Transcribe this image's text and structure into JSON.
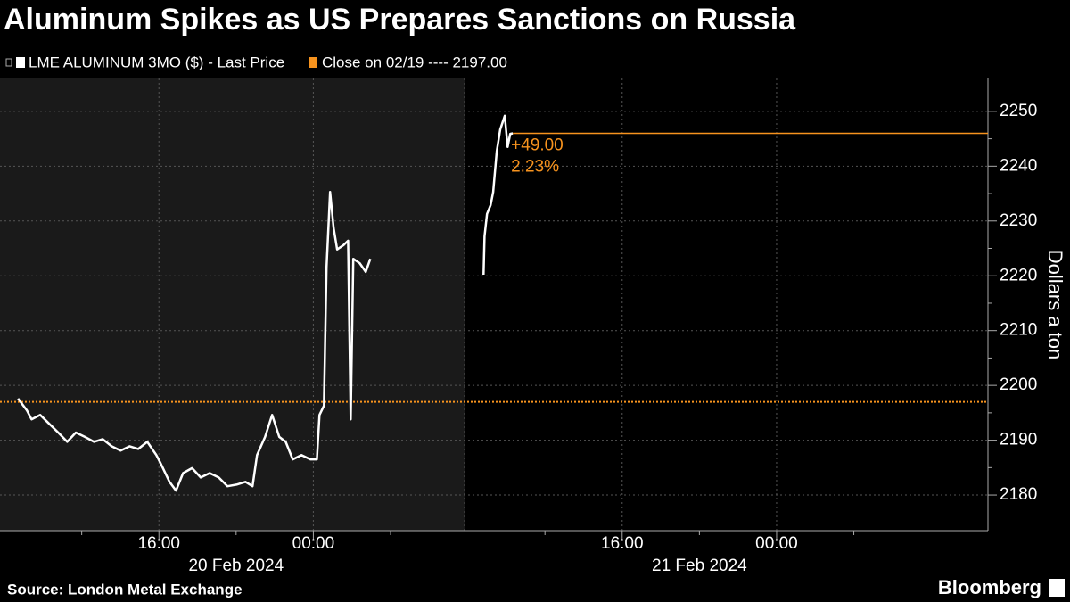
{
  "chart_data": {
    "type": "line",
    "title": "Aluminum Spikes as US Prepares Sanctions on Russia",
    "y_label": "Dollars a ton",
    "source": "Source: London Metal Exchange",
    "brand": "Bloomberg",
    "x": [
      "2024-02-20T08:42",
      "2024-02-20T09:10",
      "2024-02-20T09:24",
      "2024-02-20T09:51",
      "2024-02-20T10:19",
      "2024-02-20T10:47",
      "2024-02-20T11:15",
      "2024-02-20T11:42",
      "2024-02-20T12:10",
      "2024-02-20T12:38",
      "2024-02-20T13:05",
      "2024-02-20T13:33",
      "2024-02-20T14:01",
      "2024-02-20T14:29",
      "2024-02-20T14:56",
      "2024-02-20T15:24",
      "2024-02-20T15:52",
      "2024-02-20T16:06",
      "2024-02-20T16:33",
      "2024-02-20T16:53",
      "2024-02-20T17:15",
      "2024-02-20T17:43",
      "2024-02-20T18:10",
      "2024-02-20T18:38",
      "2024-02-20T19:06",
      "2024-02-20T19:33",
      "2024-02-20T20:01",
      "2024-02-20T20:29",
      "2024-02-20T20:51",
      "2024-02-20T21:05",
      "2024-02-20T21:30",
      "2024-02-20T21:52",
      "2024-02-20T22:14",
      "2024-02-20T22:34",
      "2024-02-20T22:56",
      "2024-02-20T23:23",
      "2024-02-20T23:51",
      "2024-02-21T00:11",
      "2024-02-21T00:19",
      "2024-02-21T00:33",
      "2024-02-21T00:41",
      "2024-02-21T00:52",
      "2024-02-21T01:03",
      "2024-02-21T01:14",
      "2024-02-21T01:34",
      "2024-02-21T01:48",
      "2024-02-21T01:56",
      "2024-02-21T02:04",
      "2024-02-21T02:24",
      "2024-02-21T02:43",
      "2024-02-21T02:57",
      "2024-02-21T05:00",
      "2024-02-21T08:49",
      "2024-02-21T08:52",
      "2024-02-21T09:00",
      "2024-02-21T09:11",
      "2024-02-21T09:19",
      "2024-02-21T09:30",
      "2024-02-21T09:41",
      "2024-02-21T09:55",
      "2024-02-21T10:04",
      "2024-02-21T10:12",
      "2024-02-21T10:20"
    ],
    "series": [
      {
        "name": "LME ALUMINUM 3MO ($) - Last Price",
        "color": "#ffffff",
        "values": [
          2197.6,
          2195.4,
          2193.8,
          2194.6,
          2193,
          2191.4,
          2189.7,
          2191.4,
          2190.6,
          2189.7,
          2190.2,
          2188.9,
          2188.1,
          2188.9,
          2188.4,
          2189.7,
          2187.3,
          2185.7,
          2182.4,
          2180.8,
          2184,
          2184.9,
          2183.2,
          2184,
          2183.2,
          2181.6,
          2181.9,
          2182.4,
          2181.6,
          2187.3,
          2190.6,
          2194.6,
          2190.6,
          2189.7,
          2186.5,
          2187.3,
          2186.5,
          2186.5,
          2194.6,
          2196.3,
          2221.5,
          2235.3,
          2228.8,
          2224.8,
          2225.6,
          2226.4,
          2193.8,
          2223.1,
          2222.3,
          2220.7,
          2223.1,
          null,
          2220.2,
          2227.2,
          2231.3,
          2232.9,
          2235.3,
          2242.7,
          2246.7,
          2249.2,
          2243.5,
          2245.9,
          2246
        ]
      }
    ],
    "reference": {
      "label": "Close on 02/19 ---- 2197.00",
      "value": 2197,
      "color": "#f7931e"
    },
    "annotation": {
      "change": 49,
      "change_label": "+49.00",
      "change_pct": 2.23,
      "change_pct_label": "2.23%",
      "color": "#f7931e"
    },
    "xlim": [
      "2024-02-20T07:46",
      "2024-02-22T10:57"
    ],
    "xticks": [
      {
        "value": "2024-02-20T16:00",
        "label": "16:00"
      },
      {
        "value": "2024-02-21T00:00",
        "label": "00:00"
      },
      {
        "value": "2024-02-21T16:00",
        "label": "16:00"
      },
      {
        "value": "2024-02-22T00:00",
        "label": "00:00"
      }
    ],
    "x_date_labels": [
      {
        "value": "2024-02-20T20:00",
        "label": "20 Feb 2024"
      },
      {
        "value": "2024-02-21T20:00",
        "label": "21 Feb 2024"
      }
    ],
    "x_minor_ticks": [
      "2024-02-20T12:00",
      "2024-02-20T20:00",
      "2024-02-21T04:00",
      "2024-02-21T12:00",
      "2024-02-21T20:00",
      "2024-02-22T04:00"
    ],
    "highlight_range": [
      "2024-02-20T07:46",
      "2024-02-21T07:50"
    ],
    "highlight_color": "#1a1a1a",
    "ylim": [
      2173.5,
      2256
    ],
    "yticks": [
      2180,
      2190,
      2200,
      2210,
      2220,
      2230,
      2240,
      2250
    ],
    "grid": true
  }
}
